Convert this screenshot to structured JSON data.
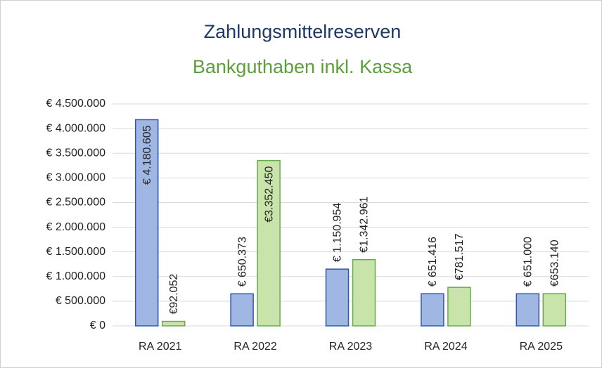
{
  "chart_data": {
    "type": "bar",
    "title": "Zahlungsmittelreserven",
    "subtitle": "Bankguthaben inkl. Kassa",
    "categories": [
      "RA 2021",
      "RA 2022",
      "RA 2023",
      "RA 2024",
      "RA 2025"
    ],
    "series": [
      {
        "color": "#a0b7e4",
        "values": [
          4180605,
          650373,
          1150954,
          651416,
          651000
        ],
        "value_labels": [
          "€ 4.180.605",
          "€ 650.373",
          "€ 1.150.954",
          "€ 651.416",
          "€ 651.000"
        ]
      },
      {
        "color": "#c8e4aa",
        "values": [
          92052,
          3352450,
          1342961,
          781517,
          653140
        ],
        "value_labels": [
          "€92.052",
          "€3.352.450",
          "€1.342.961",
          "€781.517",
          "€653.140"
        ]
      }
    ],
    "ylim": [
      0,
      4500000
    ],
    "yticks": [
      {
        "value": 0,
        "label": "€ 0"
      },
      {
        "value": 500000,
        "label": "€ 500.000"
      },
      {
        "value": 1000000,
        "label": "€ 1.000.000"
      },
      {
        "value": 1500000,
        "label": "€ 1.500.000"
      },
      {
        "value": 2000000,
        "label": "€ 2.000.000"
      },
      {
        "value": 2500000,
        "label": "€ 2.500.000"
      },
      {
        "value": 3000000,
        "label": "€ 3.000.000"
      },
      {
        "value": 3500000,
        "label": "€ 3.500.000"
      },
      {
        "value": 4000000,
        "label": "€ 4.000.000"
      },
      {
        "value": 4500000,
        "label": "€ 4.500.000"
      }
    ],
    "grid": true
  }
}
